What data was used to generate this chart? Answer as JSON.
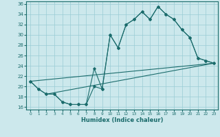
{
  "xlabel": "Humidex (Indice chaleur)",
  "bg_color": "#cce8ec",
  "grid_color": "#99ccd4",
  "line_color": "#1a6b6b",
  "xlim": [
    -0.5,
    23.5
  ],
  "ylim": [
    15.5,
    36.5
  ],
  "xticks": [
    0,
    1,
    2,
    3,
    4,
    5,
    6,
    7,
    8,
    9,
    10,
    11,
    12,
    13,
    14,
    15,
    16,
    17,
    18,
    19,
    20,
    21,
    22,
    23
  ],
  "yticks": [
    16,
    18,
    20,
    22,
    24,
    26,
    28,
    30,
    32,
    34,
    36
  ],
  "line1_x": [
    0,
    1,
    2,
    3,
    4,
    5,
    6,
    7,
    8,
    9,
    10,
    11,
    12,
    13,
    14,
    15,
    16,
    17,
    18,
    19,
    20,
    21,
    22,
    23
  ],
  "line1_y": [
    21,
    19.5,
    18.5,
    18.5,
    17.0,
    16.5,
    16.5,
    16.5,
    23.5,
    19.5,
    30.0,
    27.5,
    32.0,
    33.0,
    34.5,
    33.0,
    35.5,
    34.0,
    33.0,
    31.0,
    29.5,
    25.5,
    25.0,
    24.5
  ],
  "line2_x": [
    0,
    1,
    2,
    3,
    4,
    5,
    6,
    7,
    8,
    9,
    10,
    11,
    12,
    13,
    14,
    15,
    16,
    17,
    18,
    19,
    20,
    21,
    22,
    23
  ],
  "line2_y": [
    21,
    19.5,
    18.5,
    18.5,
    17.0,
    16.5,
    16.5,
    16.5,
    20.0,
    19.5,
    30.0,
    27.5,
    32.0,
    33.0,
    34.5,
    33.0,
    35.5,
    34.0,
    33.0,
    31.0,
    29.5,
    25.5,
    25.0,
    24.5
  ],
  "line3_x": [
    0,
    23
  ],
  "line3_y": [
    21,
    24.5
  ],
  "line4_x": [
    2,
    23
  ],
  "line4_y": [
    18.5,
    24.5
  ]
}
